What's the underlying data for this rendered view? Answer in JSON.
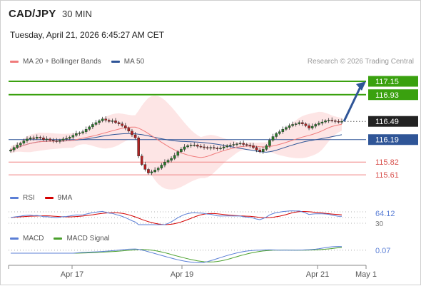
{
  "header": {
    "symbol": "CAD/JPY",
    "timeframe": "30 MIN",
    "datetime": "Tuesday, April 21, 2026 6:45:27 AM CET",
    "credit": "Research © 2026 Trading Central"
  },
  "legends": {
    "price": [
      {
        "label": "MA 20 + Bollinger Bands",
        "color": "#f07b7b"
      },
      {
        "label": "MA 50",
        "color": "#2f5597"
      }
    ],
    "rsi": [
      {
        "label": "RSI",
        "color": "#5b7fd6"
      },
      {
        "label": "9MA",
        "color": "#d40000"
      }
    ],
    "macd": [
      {
        "label": "MACD",
        "color": "#5b7fd6"
      },
      {
        "label": "MACD Signal",
        "color": "#4aa02c"
      }
    ]
  },
  "colors": {
    "green_level": "#3aa10f",
    "blue_level": "#2f5597",
    "red_level": "#f08080",
    "current": "#222222",
    "arrow": "#2f5597",
    "candle_up": "#2a7a2a",
    "candle_down": "#b22222",
    "bollinger_fill": "#fde0e0"
  },
  "chart_data": {
    "type": "candlestick",
    "x_tick_labels": [
      "Apr 17",
      "Apr 19",
      "Apr 21",
      "May 1"
    ],
    "levels": [
      {
        "value": 117.15,
        "label": "117.15",
        "kind": "target-2",
        "color": "#3aa10f"
      },
      {
        "value": 116.93,
        "label": "116.93",
        "kind": "target-1",
        "color": "#3aa10f"
      },
      {
        "value": 116.49,
        "label": "116.49",
        "kind": "last-price",
        "color": "#222222"
      },
      {
        "value": 116.19,
        "label": "116.19",
        "kind": "pivot",
        "color": "#2f5597"
      },
      {
        "value": 115.82,
        "label": "115.82",
        "kind": "support-1",
        "color": "#f08080"
      },
      {
        "value": 115.61,
        "label": "115.61",
        "kind": "support-2",
        "color": "#f08080"
      }
    ],
    "price_range": [
      115.4,
      117.35
    ],
    "close_series": [
      116.02,
      116.06,
      116.1,
      116.13,
      116.17,
      116.2,
      116.22,
      116.21,
      116.23,
      116.22,
      116.19,
      116.2,
      116.18,
      116.17,
      116.16,
      116.18,
      116.2,
      116.21,
      116.23,
      116.26,
      116.29,
      116.3,
      116.32,
      116.36,
      116.4,
      116.44,
      116.47,
      116.5,
      116.53,
      116.51,
      116.49,
      116.5,
      116.47,
      116.45,
      116.42,
      116.38,
      116.33,
      116.27,
      116.22,
      115.92,
      115.78,
      115.7,
      115.64,
      115.66,
      115.69,
      115.72,
      115.77,
      115.82,
      115.85,
      115.88,
      115.93,
      115.99,
      116.03,
      116.07,
      116.09,
      116.1,
      116.1,
      116.08,
      116.07,
      116.06,
      116.05,
      116.06,
      116.05,
      116.04,
      116.05,
      116.07,
      116.09,
      116.1,
      116.11,
      116.12,
      116.13,
      116.11,
      116.1,
      116.09,
      116.06,
      116.02,
      115.99,
      116.03,
      116.09,
      116.18,
      116.24,
      116.29,
      116.32,
      116.36,
      116.39,
      116.42,
      116.44,
      116.45,
      116.47,
      116.45,
      116.42,
      116.38,
      116.41,
      116.44,
      116.46,
      116.48,
      116.5,
      116.51,
      116.5,
      116.49,
      116.48,
      116.49
    ],
    "rsi": {
      "last": 64.12,
      "levels": [
        70,
        30
      ]
    },
    "macd": {
      "last": 0.07
    }
  }
}
